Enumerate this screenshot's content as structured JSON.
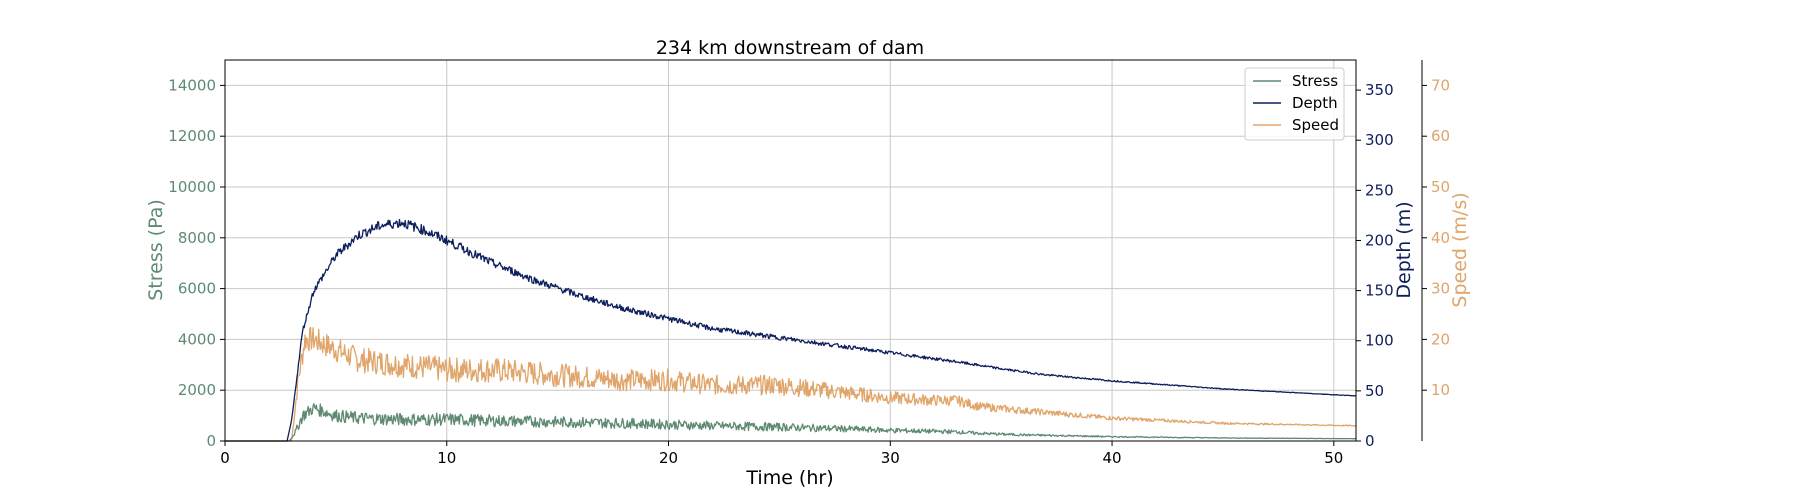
{
  "chart_data": {
    "type": "line",
    "title": "234 km downstream of dam",
    "xlabel": "Time (hr)",
    "xlim": [
      0,
      51
    ],
    "xticks": [
      0,
      10,
      20,
      30,
      40,
      50
    ],
    "grid": true,
    "legend_position": "top-right",
    "axes": {
      "stress": {
        "label": "Stress (Pa)",
        "side": "left",
        "lim": [
          0,
          15000
        ],
        "ticks": [
          0,
          2000,
          4000,
          6000,
          8000,
          10000,
          12000,
          14000
        ]
      },
      "depth": {
        "label": "Depth (m)",
        "side": "right",
        "lim": [
          0,
          380
        ],
        "ticks": [
          0,
          50,
          100,
          150,
          200,
          250,
          300,
          350
        ]
      },
      "speed": {
        "label": "Speed (m/s)",
        "side": "right-outer",
        "lim": [
          0,
          75
        ],
        "ticks": [
          10,
          20,
          30,
          40,
          50,
          60,
          70
        ]
      }
    },
    "series": [
      {
        "name": "Stress",
        "axis": "stress",
        "color": "#5e8a72",
        "noise": 250,
        "x": [
          0,
          2.9,
          3.2,
          3.5,
          4,
          5,
          6,
          8,
          10,
          12,
          15,
          18,
          20,
          22,
          25,
          28,
          30,
          32,
          33,
          34,
          36,
          40,
          45,
          51
        ],
        "y": [
          0,
          0,
          400,
          1000,
          1300,
          1000,
          900,
          850,
          850,
          800,
          750,
          700,
          650,
          600,
          550,
          480,
          420,
          380,
          360,
          300,
          240,
          170,
          120,
          90
        ]
      },
      {
        "name": "Depth",
        "axis": "depth",
        "color": "#0d1f5c",
        "noise": 5,
        "x": [
          0,
          2.8,
          3.0,
          3.5,
          4,
          5,
          6,
          7,
          8,
          9,
          10,
          12,
          14,
          16,
          18,
          20,
          22,
          25,
          28,
          30,
          33,
          35,
          37,
          40,
          45,
          51
        ],
        "y": [
          0,
          0,
          20,
          110,
          150,
          185,
          205,
          215,
          218,
          210,
          200,
          178,
          160,
          145,
          132,
          122,
          112,
          103,
          94,
          88,
          79,
          72,
          66,
          60,
          52,
          45
        ]
      },
      {
        "name": "Speed",
        "axis": "speed",
        "color": "#e0a56a",
        "noise": 2.5,
        "x": [
          0,
          3.0,
          3.3,
          3.6,
          4,
          5,
          6,
          8,
          10,
          12,
          15,
          18,
          20,
          22,
          25,
          28,
          30,
          32,
          33,
          34,
          36,
          40,
          45,
          51
        ],
        "y": [
          0,
          0,
          12,
          20,
          20,
          18,
          16,
          15,
          14,
          14,
          13,
          12,
          12,
          11,
          11,
          9.5,
          8.5,
          8,
          8,
          6.8,
          6,
          4.5,
          3.5,
          3
        ]
      }
    ]
  }
}
